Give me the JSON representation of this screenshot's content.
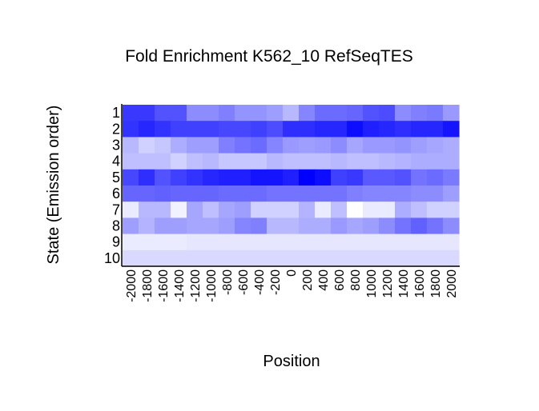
{
  "chart_data": {
    "type": "heatmap",
    "title": "Fold Enrichment K562_10 RefSeqTES",
    "xlabel": "Position",
    "ylabel": "State (Emission order)",
    "x_ticks": [
      "-2000",
      "-1800",
      "-1600",
      "-1400",
      "-1200",
      "-1000",
      "-800",
      "-600",
      "-400",
      "-200",
      "0",
      "200",
      "400",
      "600",
      "800",
      "1000",
      "1200",
      "1400",
      "1600",
      "1800",
      "2000"
    ],
    "y_ticks": [
      "1",
      "2",
      "3",
      "4",
      "5",
      "6",
      "7",
      "8",
      "9",
      "10"
    ],
    "color_scale": {
      "low": "#ffffff",
      "high": "#0000ff"
    },
    "values": [
      [
        0.78,
        0.78,
        0.68,
        0.68,
        0.45,
        0.45,
        0.5,
        0.42,
        0.42,
        0.38,
        0.28,
        0.48,
        0.58,
        0.58,
        0.6,
        0.68,
        0.7,
        0.45,
        0.5,
        0.52,
        0.4
      ],
      [
        0.8,
        0.85,
        0.8,
        0.75,
        0.75,
        0.75,
        0.72,
        0.72,
        0.75,
        0.7,
        0.82,
        0.82,
        0.85,
        0.85,
        0.95,
        0.88,
        0.85,
        0.82,
        0.85,
        0.85,
        0.92
      ],
      [
        0.28,
        0.18,
        0.22,
        0.32,
        0.38,
        0.38,
        0.5,
        0.55,
        0.58,
        0.48,
        0.4,
        0.38,
        0.4,
        0.45,
        0.35,
        0.4,
        0.4,
        0.42,
        0.38,
        0.35,
        0.32
      ],
      [
        0.25,
        0.25,
        0.25,
        0.18,
        0.25,
        0.28,
        0.22,
        0.22,
        0.22,
        0.28,
        0.25,
        0.25,
        0.25,
        0.28,
        0.25,
        0.25,
        0.28,
        0.3,
        0.32,
        0.32,
        0.32
      ],
      [
        0.72,
        0.82,
        0.68,
        0.75,
        0.8,
        0.85,
        0.88,
        0.88,
        0.92,
        0.92,
        0.88,
        1.0,
        0.95,
        0.75,
        0.78,
        0.65,
        0.65,
        0.68,
        0.55,
        0.58,
        0.52
      ],
      [
        0.6,
        0.6,
        0.62,
        0.6,
        0.6,
        0.6,
        0.58,
        0.58,
        0.58,
        0.55,
        0.55,
        0.55,
        0.55,
        0.55,
        0.5,
        0.48,
        0.48,
        0.48,
        0.45,
        0.45,
        0.38
      ],
      [
        0.08,
        0.28,
        0.28,
        0.05,
        0.35,
        0.25,
        0.35,
        0.38,
        0.18,
        0.18,
        0.18,
        0.3,
        0.08,
        0.25,
        0.0,
        0.08,
        0.08,
        0.32,
        0.25,
        0.18,
        0.18
      ],
      [
        0.38,
        0.3,
        0.38,
        0.38,
        0.35,
        0.35,
        0.38,
        0.48,
        0.5,
        0.28,
        0.28,
        0.32,
        0.32,
        0.4,
        0.35,
        0.38,
        0.45,
        0.55,
        0.62,
        0.55,
        0.45
      ],
      [
        0.08,
        0.08,
        0.08,
        0.08,
        0.1,
        0.1,
        0.1,
        0.1,
        0.1,
        0.1,
        0.1,
        0.1,
        0.1,
        0.1,
        0.1,
        0.1,
        0.1,
        0.1,
        0.1,
        0.1,
        0.1
      ],
      [
        0.15,
        0.15,
        0.15,
        0.15,
        0.15,
        0.15,
        0.15,
        0.15,
        0.15,
        0.15,
        0.15,
        0.15,
        0.15,
        0.15,
        0.15,
        0.15,
        0.15,
        0.15,
        0.15,
        0.15,
        0.15
      ]
    ]
  }
}
